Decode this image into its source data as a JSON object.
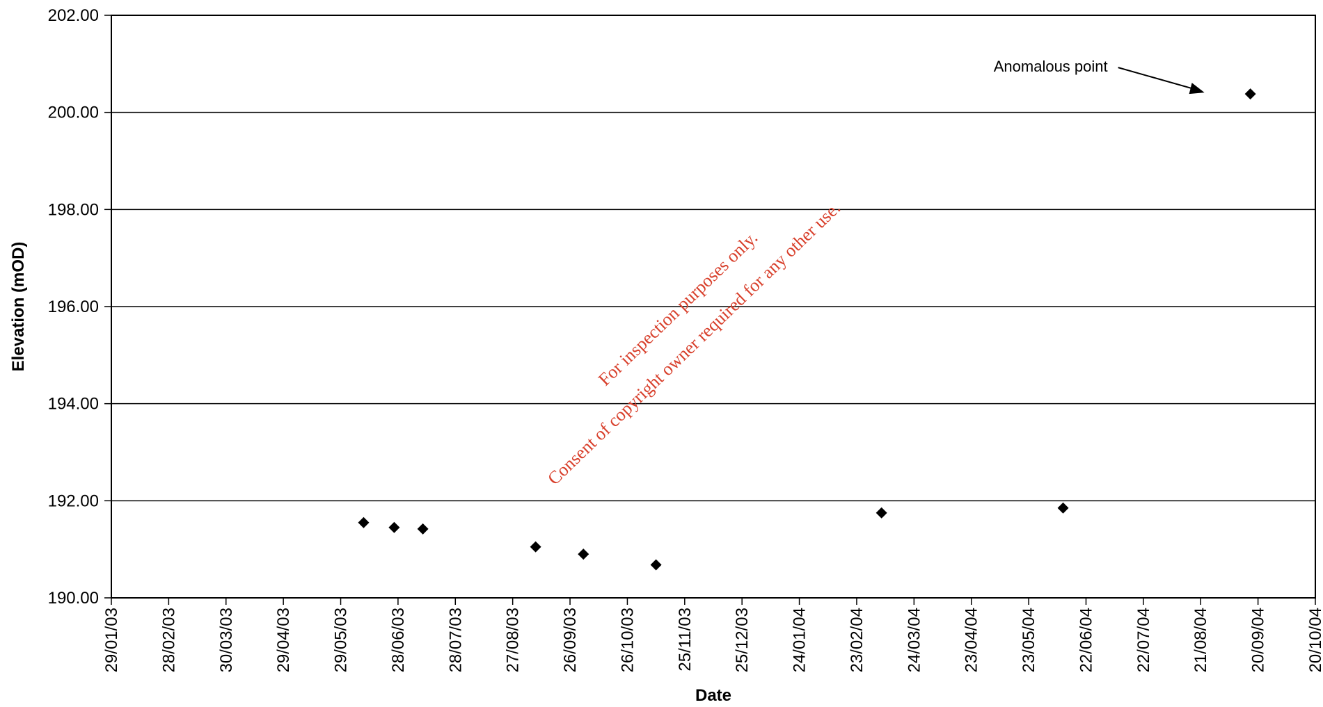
{
  "chart_data": {
    "type": "scatter",
    "title": "",
    "xlabel": "Date",
    "ylabel": "Elevation (mOD)",
    "ylim": [
      190,
      202
    ],
    "yticks": [
      "190.00",
      "192.00",
      "194.00",
      "196.00",
      "198.00",
      "200.00",
      "202.00"
    ],
    "xlim": [
      "2003-01-29",
      "2004-10-20"
    ],
    "xticks": [
      "29/01/03",
      "28/02/03",
      "30/03/03",
      "29/04/03",
      "29/05/03",
      "28/06/03",
      "28/07/03",
      "27/08/03",
      "26/09/03",
      "26/10/03",
      "25/11/03",
      "25/12/03",
      "24/01/04",
      "23/02/04",
      "24/03/04",
      "23/04/04",
      "23/05/04",
      "22/06/04",
      "22/07/04",
      "21/08/04",
      "20/09/04",
      "20/10/04"
    ],
    "grid": "horizontal",
    "marker": "diamond",
    "points": [
      {
        "x": "2003-06-10",
        "y": 191.55
      },
      {
        "x": "2003-06-26",
        "y": 191.45
      },
      {
        "x": "2003-07-11",
        "y": 191.42
      },
      {
        "x": "2003-09-08",
        "y": 191.05
      },
      {
        "x": "2003-10-03",
        "y": 190.9
      },
      {
        "x": "2003-11-10",
        "y": 190.68
      },
      {
        "x": "2004-03-07",
        "y": 191.75
      },
      {
        "x": "2004-06-10",
        "y": 191.85
      },
      {
        "x": "2004-09-16",
        "y": 200.38
      }
    ],
    "annotations": [
      {
        "text": "Anomalous point",
        "points_to": {
          "x": "2004-09-16",
          "y": 200.38
        }
      }
    ]
  },
  "watermark": {
    "line1": "For inspection purposes only.",
    "line2": "Consent of copyright owner required for any other use.",
    "color": "#d8402c"
  }
}
